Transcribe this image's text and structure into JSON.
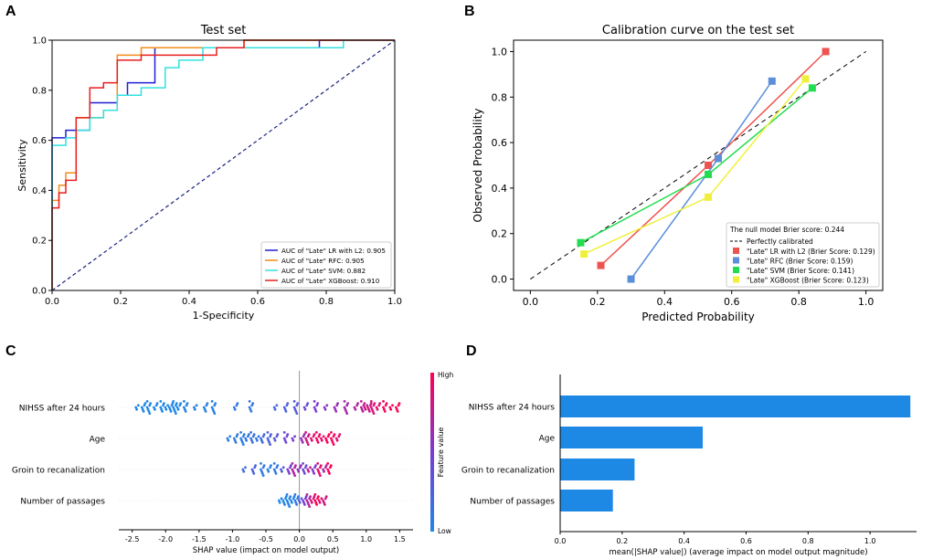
{
  "panels": [
    {
      "letter": "A"
    },
    {
      "letter": "B"
    },
    {
      "letter": "C"
    },
    {
      "letter": "D"
    }
  ],
  "chart_data": [
    {
      "id": "A",
      "type": "line",
      "title": "Test set",
      "xlabel": "1-Specificity",
      "ylabel": "Sensitivity",
      "xlim": [
        0,
        1
      ],
      "ylim": [
        0,
        1
      ],
      "xticks": [
        0.0,
        0.2,
        0.4,
        0.6,
        0.8,
        1.0
      ],
      "yticks": [
        0.0,
        0.2,
        0.4,
        0.6,
        0.8,
        1.0
      ],
      "diagonal": {
        "color": "#1a237e",
        "style": "dashed"
      },
      "legend_position": "bottom-right",
      "series": [
        {
          "name": "AUC of \"Late\" LR with L2: 0.905",
          "color": "#1f1fd6",
          "x": [
            0,
            0,
            0.04,
            0.04,
            0.11,
            0.11,
            0.19,
            0.19,
            0.22,
            0.22,
            0.3,
            0.3,
            0.56,
            0.56,
            0.78,
            0.78,
            1.0
          ],
          "y": [
            0,
            0.61,
            0.61,
            0.64,
            0.64,
            0.75,
            0.75,
            0.78,
            0.78,
            0.83,
            0.83,
            0.97,
            0.97,
            0.97,
            0.97,
            1.0,
            1.0
          ]
        },
        {
          "name": "AUC of \"Late\" RFC: 0.905",
          "color": "#f28c1a",
          "x": [
            0,
            0,
            0.02,
            0.02,
            0.04,
            0.04,
            0.07,
            0.07,
            0.11,
            0.11,
            0.15,
            0.15,
            0.19,
            0.19,
            0.26,
            0.26,
            0.3,
            0.3,
            0.56,
            0.56,
            1.0
          ],
          "y": [
            0,
            0.36,
            0.36,
            0.42,
            0.42,
            0.47,
            0.47,
            0.69,
            0.69,
            0.69,
            0.69,
            0.72,
            0.72,
            0.94,
            0.94,
            0.97,
            0.97,
            0.97,
            0.97,
            1.0,
            1.0
          ]
        },
        {
          "name": "AUC of \"Late\" SVM: 0.882",
          "color": "#33e0e0",
          "x": [
            0,
            0,
            0.04,
            0.04,
            0.07,
            0.07,
            0.11,
            0.11,
            0.15,
            0.15,
            0.19,
            0.19,
            0.26,
            0.26,
            0.33,
            0.33,
            0.37,
            0.37,
            0.44,
            0.44,
            0.85,
            0.85,
            1.0
          ],
          "y": [
            0,
            0.58,
            0.58,
            0.61,
            0.61,
            0.64,
            0.64,
            0.69,
            0.69,
            0.72,
            0.72,
            0.78,
            0.78,
            0.81,
            0.81,
            0.89,
            0.89,
            0.92,
            0.92,
            0.97,
            0.97,
            1.0,
            1.0
          ]
        },
        {
          "name": "AUC of \"Late\" XGBoost: 0.910",
          "color": "#e81f1f",
          "x": [
            0,
            0,
            0.02,
            0.02,
            0.04,
            0.04,
            0.07,
            0.07,
            0.11,
            0.11,
            0.15,
            0.15,
            0.19,
            0.19,
            0.26,
            0.26,
            0.33,
            0.33,
            0.48,
            0.48,
            0.56,
            0.56,
            1.0
          ],
          "y": [
            0,
            0.33,
            0.33,
            0.39,
            0.39,
            0.44,
            0.44,
            0.69,
            0.69,
            0.81,
            0.81,
            0.83,
            0.83,
            0.92,
            0.92,
            0.94,
            0.94,
            0.94,
            0.94,
            0.97,
            0.97,
            1.0,
            1.0
          ]
        }
      ]
    },
    {
      "id": "B",
      "type": "line",
      "title": "Calibration curve on the test set",
      "xlabel": "Predicted Probability",
      "ylabel": "Observed Probability",
      "xlim": [
        -0.05,
        1.05
      ],
      "ylim": [
        -0.05,
        1.05
      ],
      "xticks": [
        0.0,
        0.2,
        0.4,
        0.6,
        0.8,
        1.0
      ],
      "yticks": [
        0.0,
        0.2,
        0.4,
        0.6,
        0.8,
        1.0
      ],
      "perfect_line": {
        "label": "Perfectly calibrated",
        "color": "#000000",
        "style": "dashed"
      },
      "legend_title": "The null model Brier score: 0.244",
      "legend_position": "bottom-right",
      "series": [
        {
          "name": "\"Late\" LR with L2 (Brier Score: 0.129)",
          "color": "#ef5350",
          "x": [
            0.21,
            0.53,
            0.88
          ],
          "y": [
            0.06,
            0.5,
            1.0
          ]
        },
        {
          "name": "\"Late\" RFC (Brier Score: 0.159)",
          "color": "#5b8fd9",
          "x": [
            0.3,
            0.56,
            0.72
          ],
          "y": [
            0.0,
            0.53,
            0.87
          ]
        },
        {
          "name": "\"Late\" SVM (Brier Score: 0.141)",
          "color": "#22dd4f",
          "x": [
            0.15,
            0.53,
            0.84
          ],
          "y": [
            0.16,
            0.46,
            0.84
          ]
        },
        {
          "name": "\"Late\" XGBoost (Brier Score: 0.123)",
          "color": "#f0f03c",
          "x": [
            0.16,
            0.53,
            0.82
          ],
          "y": [
            0.11,
            0.36,
            0.88
          ]
        }
      ]
    },
    {
      "id": "C",
      "type": "scatter",
      "title": "",
      "xlabel": "SHAP value (impact on model output)",
      "ylabel": "",
      "xlim": [
        -2.7,
        1.7
      ],
      "xticks": [
        -2.5,
        -2.0,
        -1.5,
        -1.0,
        -0.5,
        0.0,
        0.5,
        1.0,
        1.5
      ],
      "colorbar": {
        "label": "Feature value",
        "high": "High",
        "low": "Low",
        "colors": [
          "#1e88e5",
          "#7b3bd1",
          "#ff0052"
        ]
      },
      "features": [
        {
          "name": "NIHSS after 24 hours",
          "points": [
            {
              "v": -2.42,
              "f": 0
            },
            {
              "v": -2.33,
              "f": 0
            },
            {
              "v": -2.25,
              "f": 0
            },
            {
              "v": -2.15,
              "f": 0.02
            },
            {
              "v": -2.05,
              "f": 0
            },
            {
              "v": -1.98,
              "f": 0
            },
            {
              "v": -1.92,
              "f": 0.03
            },
            {
              "v": -1.86,
              "f": 0
            },
            {
              "v": -1.8,
              "f": 0
            },
            {
              "v": -1.7,
              "f": 0.04
            },
            {
              "v": -1.55,
              "f": 0.05
            },
            {
              "v": -1.4,
              "f": 0.06
            },
            {
              "v": -1.28,
              "f": 0.06
            },
            {
              "v": -0.95,
              "f": 0.1
            },
            {
              "v": -0.72,
              "f": 0.12
            },
            {
              "v": -0.35,
              "f": 0.2
            },
            {
              "v": -0.2,
              "f": 0.25
            },
            {
              "v": -0.05,
              "f": 0.3
            },
            {
              "v": 0.1,
              "f": 0.4
            },
            {
              "v": 0.25,
              "f": 0.5
            },
            {
              "v": 0.4,
              "f": 0.55
            },
            {
              "v": 0.55,
              "f": 0.6
            },
            {
              "v": 0.7,
              "f": 0.65
            },
            {
              "v": 0.85,
              "f": 0.7
            },
            {
              "v": 0.95,
              "f": 0.75
            },
            {
              "v": 1.0,
              "f": 0.8
            },
            {
              "v": 1.05,
              "f": 0.8
            },
            {
              "v": 1.1,
              "f": 0.85
            },
            {
              "v": 1.18,
              "f": 0.9
            },
            {
              "v": 1.28,
              "f": 0.95
            },
            {
              "v": 1.38,
              "f": 1.0
            },
            {
              "v": 1.47,
              "f": 1.0
            }
          ]
        },
        {
          "name": "Age",
          "points": [
            {
              "v": -1.05,
              "f": 0.05
            },
            {
              "v": -0.95,
              "f": 0.1
            },
            {
              "v": -0.85,
              "f": 0.08
            },
            {
              "v": -0.78,
              "f": 0.12
            },
            {
              "v": -0.7,
              "f": 0.15
            },
            {
              "v": -0.62,
              "f": 0.1
            },
            {
              "v": -0.55,
              "f": 0.2
            },
            {
              "v": -0.45,
              "f": 0.25
            },
            {
              "v": -0.35,
              "f": 0.3
            },
            {
              "v": -0.2,
              "f": 0.45
            },
            {
              "v": -0.08,
              "f": 0.5
            },
            {
              "v": 0.05,
              "f": 0.6
            },
            {
              "v": 0.12,
              "f": 0.8
            },
            {
              "v": 0.2,
              "f": 0.9
            },
            {
              "v": 0.28,
              "f": 0.95
            },
            {
              "v": 0.35,
              "f": 0.9
            },
            {
              "v": 0.42,
              "f": 1.0
            },
            {
              "v": 0.5,
              "f": 0.95
            },
            {
              "v": 0.58,
              "f": 0.9
            }
          ]
        },
        {
          "name": "Groin to recanalization",
          "points": [
            {
              "v": -0.82,
              "f": 0.2
            },
            {
              "v": -0.68,
              "f": 0.25
            },
            {
              "v": -0.55,
              "f": 0.1
            },
            {
              "v": -0.45,
              "f": 0.05
            },
            {
              "v": -0.35,
              "f": 0.1
            },
            {
              "v": -0.25,
              "f": 0.3
            },
            {
              "v": -0.15,
              "f": 0.5
            },
            {
              "v": -0.08,
              "f": 0.7
            },
            {
              "v": 0.0,
              "f": 0.6
            },
            {
              "v": 0.08,
              "f": 0.4
            },
            {
              "v": 0.15,
              "f": 0.8
            },
            {
              "v": 0.22,
              "f": 0.5
            },
            {
              "v": 0.3,
              "f": 0.9
            },
            {
              "v": 0.38,
              "f": 0.7
            },
            {
              "v": 0.45,
              "f": 1.0
            }
          ]
        },
        {
          "name": "Number of passages",
          "points": [
            {
              "v": -0.28,
              "f": 0.0
            },
            {
              "v": -0.22,
              "f": 0.0
            },
            {
              "v": -0.16,
              "f": 0.05
            },
            {
              "v": -0.1,
              "f": 0.0
            },
            {
              "v": -0.04,
              "f": 0.1
            },
            {
              "v": 0.02,
              "f": 0.3
            },
            {
              "v": 0.08,
              "f": 0.5
            },
            {
              "v": 0.14,
              "f": 0.7
            },
            {
              "v": 0.2,
              "f": 0.85
            },
            {
              "v": 0.26,
              "f": 1.0
            },
            {
              "v": 0.32,
              "f": 0.9
            },
            {
              "v": 0.38,
              "f": 0.8
            }
          ]
        }
      ]
    },
    {
      "id": "D",
      "type": "bar",
      "orientation": "horizontal",
      "title": "",
      "xlabel": "mean(|SHAP value|) (average impact on model output magnitude)",
      "ylabel": "",
      "xlim": [
        0,
        1.15
      ],
      "xticks": [
        0.0,
        0.2,
        0.4,
        0.6,
        0.8,
        1.0
      ],
      "color": "#1e88e5",
      "categories": [
        "NIHSS after 24 hours",
        "Age",
        "Groin to recanalization",
        "Number of passages"
      ],
      "values": [
        1.13,
        0.46,
        0.24,
        0.17
      ]
    }
  ]
}
